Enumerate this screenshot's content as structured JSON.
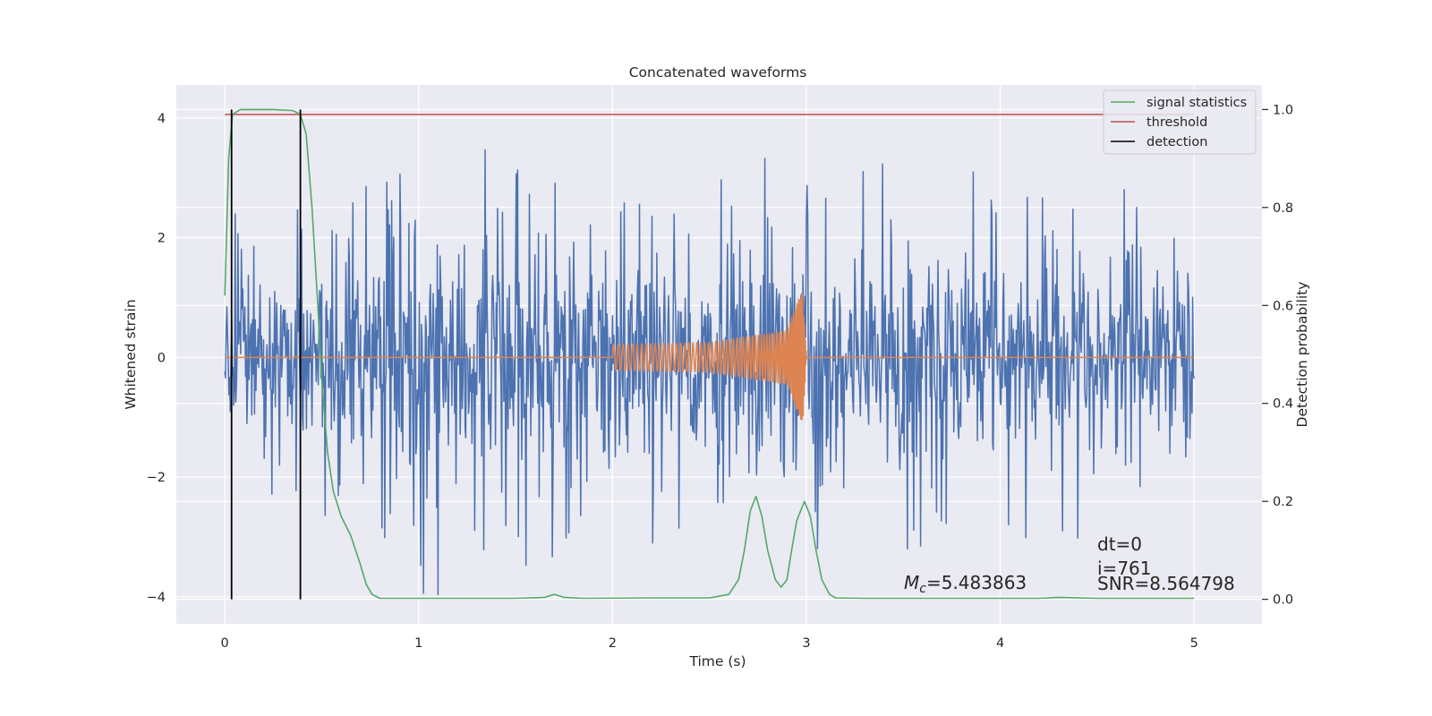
{
  "chart_data": {
    "type": "line",
    "title": "Concatenated waveforms",
    "xlabel": "Time (s)",
    "ylabel_left": "Whitened strain",
    "ylabel_right": "Detection probability",
    "xlim": [
      -0.25,
      5.35
    ],
    "ylim_left": [
      -4.45,
      4.55
    ],
    "ylim_right": [
      -0.05,
      1.05
    ],
    "x_ticks": [
      0,
      1,
      2,
      3,
      4,
      5
    ],
    "x_tick_labels": [
      "0",
      "1",
      "2",
      "3",
      "4",
      "5"
    ],
    "y_left_ticks": [
      -4,
      -2,
      0,
      2,
      4
    ],
    "y_left_tick_labels": [
      "−4",
      "−2",
      "0",
      "2",
      "4"
    ],
    "y_right_ticks": [
      0.0,
      0.2,
      0.4,
      0.6,
      0.8,
      1.0
    ],
    "y_right_tick_labels": [
      "0.0",
      "0.2",
      "0.4",
      "0.6",
      "0.8",
      "1.0"
    ],
    "grid": true,
    "legend_position": "top-right",
    "series": [
      {
        "name": "",
        "axis": "left",
        "color": "#4c72b0",
        "kind": "noisy strain",
        "x_range": [
          0,
          5
        ],
        "envelope": [
          [
            0,
            2.4
          ],
          [
            0.5,
            2.6
          ],
          [
            0.93,
            4.15
          ],
          [
            1.83,
            3.5
          ],
          [
            3.0,
            3.3
          ],
          [
            4.0,
            3.2
          ],
          [
            5.0,
            2.9
          ]
        ],
        "min_value": -4.05
      },
      {
        "name": "",
        "axis": "left",
        "color": "#dd8452",
        "kind": "chirp",
        "x_range": [
          0,
          5
        ],
        "chirp_start": 2.0,
        "chirp_end": 3.0,
        "amplitude": [
          [
            2.0,
            0.22
          ],
          [
            2.5,
            0.25
          ],
          [
            2.9,
            0.45
          ],
          [
            2.98,
            1.15
          ],
          [
            3.0,
            0.05
          ]
        ]
      },
      {
        "name": "signal statistics",
        "axis": "right",
        "color": "#55a868",
        "x": [
          0.0,
          0.02,
          0.04,
          0.08,
          0.15,
          0.25,
          0.35,
          0.39,
          0.42,
          0.45,
          0.48,
          0.5,
          0.53,
          0.56,
          0.6,
          0.65,
          0.7,
          0.73,
          0.76,
          0.8,
          1.0,
          1.5,
          1.65,
          1.7,
          1.75,
          1.85,
          2.2,
          2.5,
          2.6,
          2.65,
          2.68,
          2.71,
          2.74,
          2.77,
          2.8,
          2.84,
          2.87,
          2.9,
          2.92,
          2.95,
          2.99,
          3.02,
          3.05,
          3.08,
          3.12,
          3.15,
          3.3,
          4.2,
          4.3,
          4.5,
          5.0
        ],
        "values": [
          0.62,
          0.9,
          0.99,
          1.0,
          1.0,
          1.0,
          0.998,
          0.99,
          0.95,
          0.8,
          0.6,
          0.45,
          0.3,
          0.22,
          0.17,
          0.13,
          0.07,
          0.03,
          0.01,
          0.002,
          0.002,
          0.002,
          0.004,
          0.01,
          0.004,
          0.002,
          0.003,
          0.003,
          0.01,
          0.04,
          0.1,
          0.18,
          0.21,
          0.17,
          0.1,
          0.04,
          0.025,
          0.04,
          0.09,
          0.16,
          0.2,
          0.17,
          0.1,
          0.04,
          0.01,
          0.003,
          0.002,
          0.002,
          0.004,
          0.002,
          0.002
        ]
      },
      {
        "name": "threshold",
        "axis": "right",
        "color": "#c44e52",
        "x": [
          0,
          5
        ],
        "values": [
          0.99,
          0.99
        ]
      },
      {
        "name": "detection",
        "axis": "right",
        "color": "#000000",
        "vlines": [
          0.035,
          0.39
        ]
      }
    ],
    "annotations": {
      "mc_symbol": "M",
      "mc_sub": "c",
      "mc_value": "=5.483863",
      "dt": "dt=0",
      "i": "i=761",
      "snr": "SNR=8.564798"
    }
  }
}
